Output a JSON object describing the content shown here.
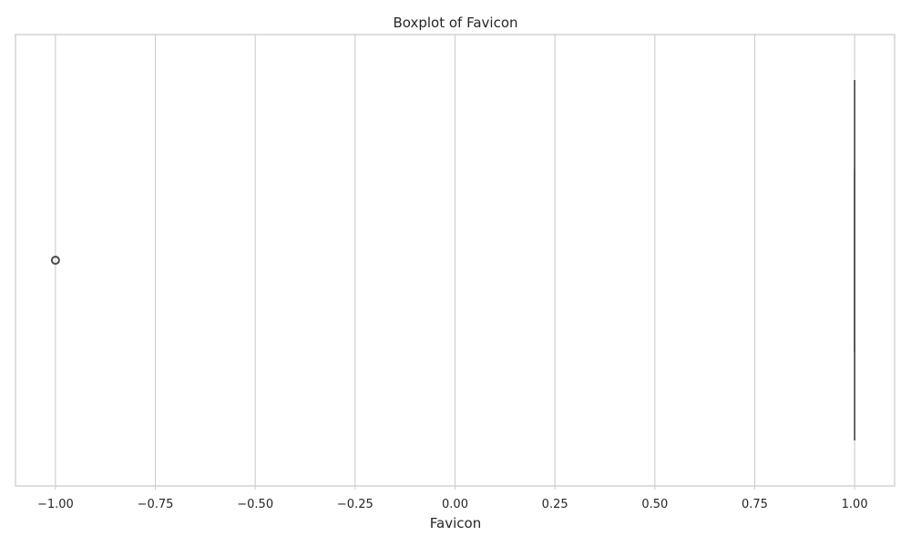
{
  "chart_data": {
    "type": "boxplot",
    "orientation": "horizontal",
    "title": "Boxplot of Favicon",
    "xlabel": "Favicon",
    "ylabel": "",
    "xlim": [
      -1.1,
      1.1
    ],
    "xticks": [
      -1.0,
      -0.75,
      -0.5,
      -0.25,
      0.0,
      0.25,
      0.5,
      0.75,
      1.0
    ],
    "xtick_labels": [
      "−1.00",
      "−0.75",
      "−0.50",
      "−0.25",
      "0.00",
      "0.25",
      "0.50",
      "0.75",
      "1.00"
    ],
    "grid": true,
    "box": {
      "min": 1.0,
      "q1": 1.0,
      "median": 1.0,
      "q3": 1.0,
      "max": 1.0,
      "outliers": [
        -1.0
      ]
    },
    "colors": {
      "grid": "#cccccc",
      "box_line": "#4a4a4a",
      "text": "#262626"
    }
  }
}
